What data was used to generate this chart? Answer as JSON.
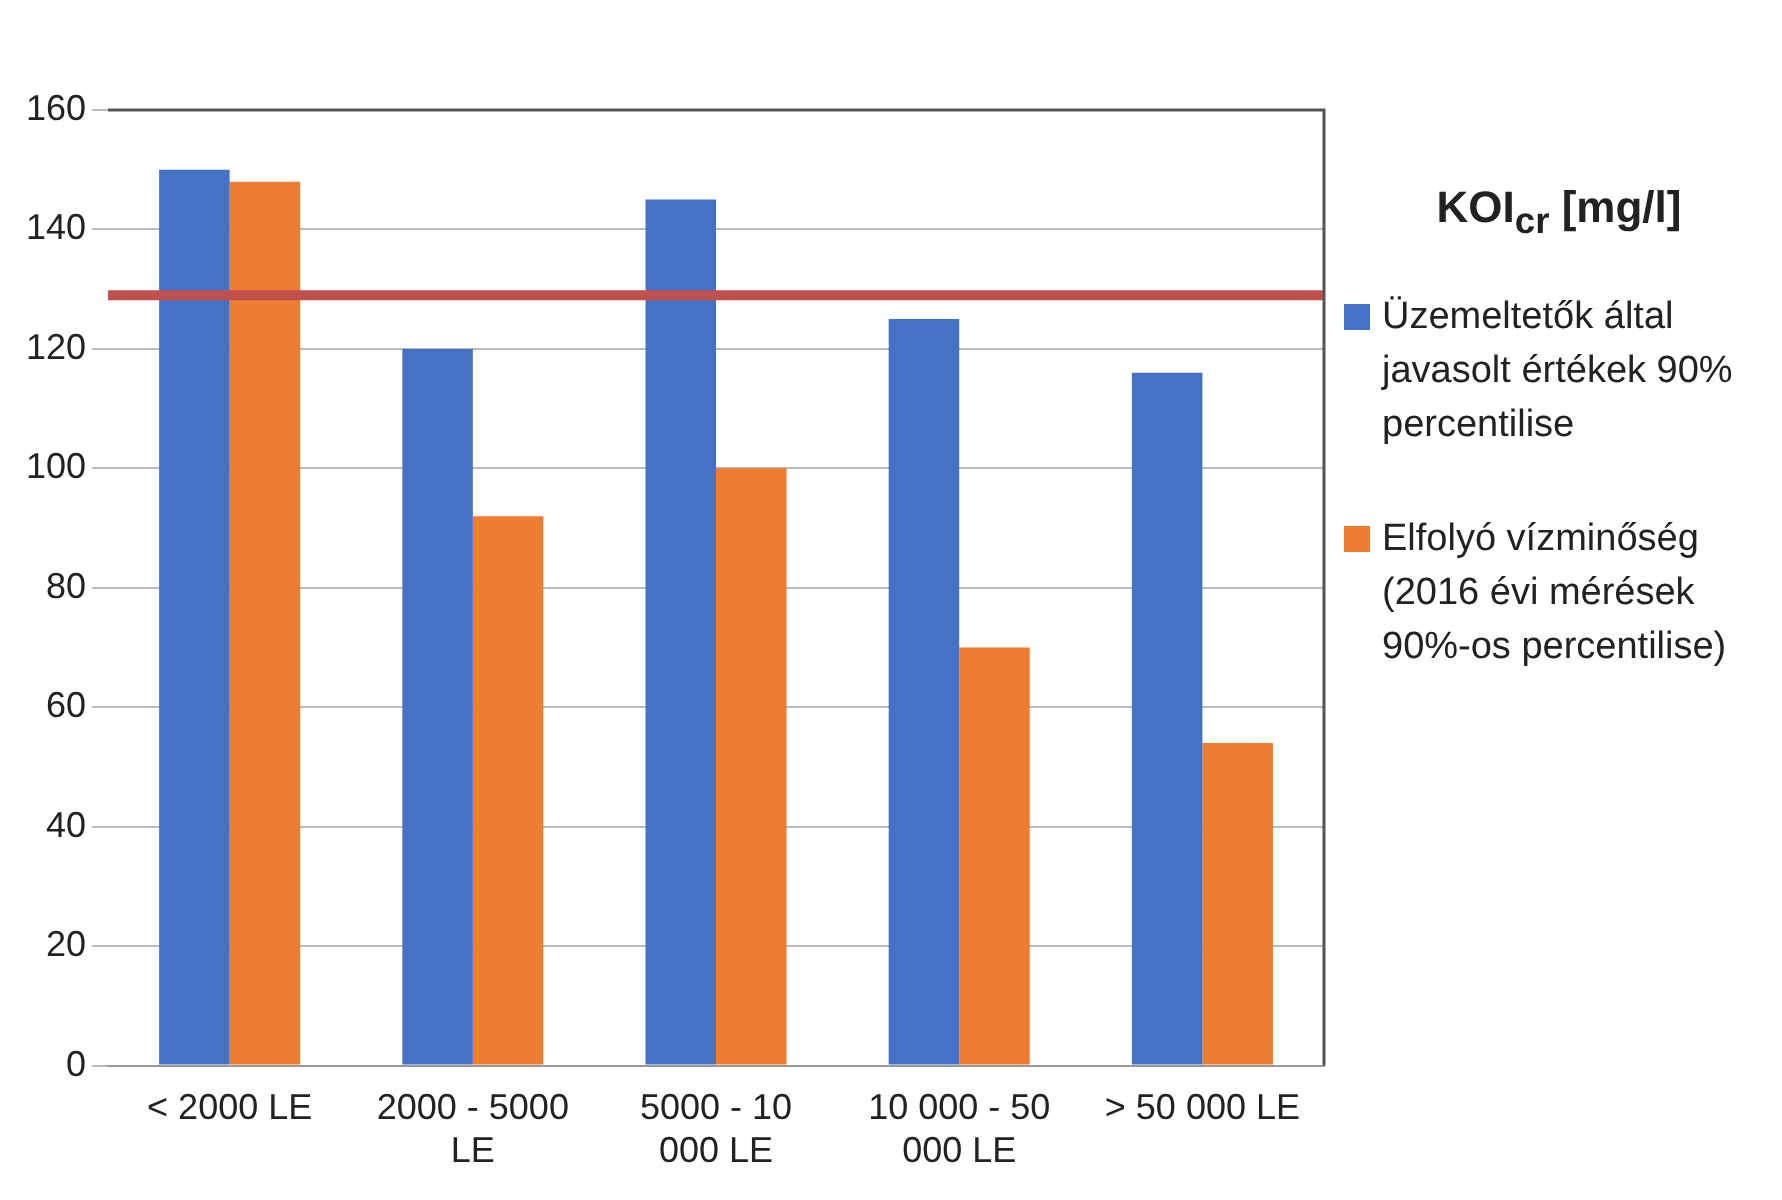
{
  "chart_data": {
    "type": "bar",
    "categories": [
      "< 2000 LE",
      "2000 - 5000 LE",
      "5000 - 10 000 LE",
      "10 000 - 50 000 LE",
      "> 50 000 LE"
    ],
    "series": [
      {
        "name": "Üzemeltetők által javasolt értékek 90% percentilise",
        "color": "#4472c4",
        "values": [
          150,
          120,
          145,
          125,
          116
        ]
      },
      {
        "name": "Elfolyó vízminőség (2016 évi mérések 90%-os percentilise)",
        "color": "#ed7d31",
        "values": [
          148,
          92,
          100,
          70,
          54
        ]
      }
    ],
    "legend_title": "KOI$_{cr}$ [mg/l]",
    "ylim": [
      0,
      160
    ],
    "yticks": [
      0,
      20,
      40,
      60,
      80,
      100,
      120,
      140,
      160
    ],
    "ref_lines": [
      {
        "axis": "y",
        "value": 129,
        "color": "#c0504d"
      }
    ],
    "grid": "y",
    "legend": "right"
  }
}
